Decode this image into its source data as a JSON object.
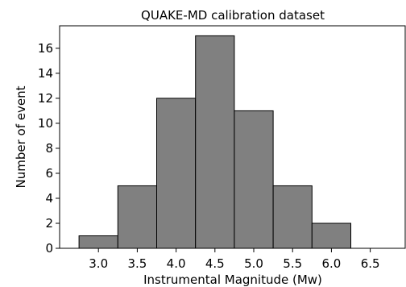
{
  "chart_data": {
    "type": "bar",
    "title": "QUAKE-MD calibration dataset",
    "xlabel": "Instrumental Magnitude (Mw)",
    "ylabel": "Number of event",
    "bins": [
      {
        "from": 2.75,
        "to": 3.25,
        "count": 1
      },
      {
        "from": 3.25,
        "to": 3.75,
        "count": 5
      },
      {
        "from": 3.75,
        "to": 4.25,
        "count": 12
      },
      {
        "from": 4.25,
        "to": 4.75,
        "count": 17
      },
      {
        "from": 4.75,
        "to": 5.25,
        "count": 11
      },
      {
        "from": 5.25,
        "to": 5.75,
        "count": 5
      },
      {
        "from": 5.75,
        "to": 6.25,
        "count": 2
      },
      {
        "from": 6.25,
        "to": 6.75,
        "count": 0
      }
    ],
    "xlim": [
      2.5,
      6.95
    ],
    "ylim": [
      0,
      17.8
    ],
    "xticks": [
      "3.0",
      "3.5",
      "4.0",
      "4.5",
      "5.0",
      "5.5",
      "6.0",
      "6.5"
    ],
    "yticks": [
      "0",
      "2",
      "4",
      "6",
      "8",
      "10",
      "12",
      "14",
      "16"
    ],
    "bar_color": "#808080",
    "edge_color": "#000000",
    "grid": false,
    "legend": "none"
  }
}
